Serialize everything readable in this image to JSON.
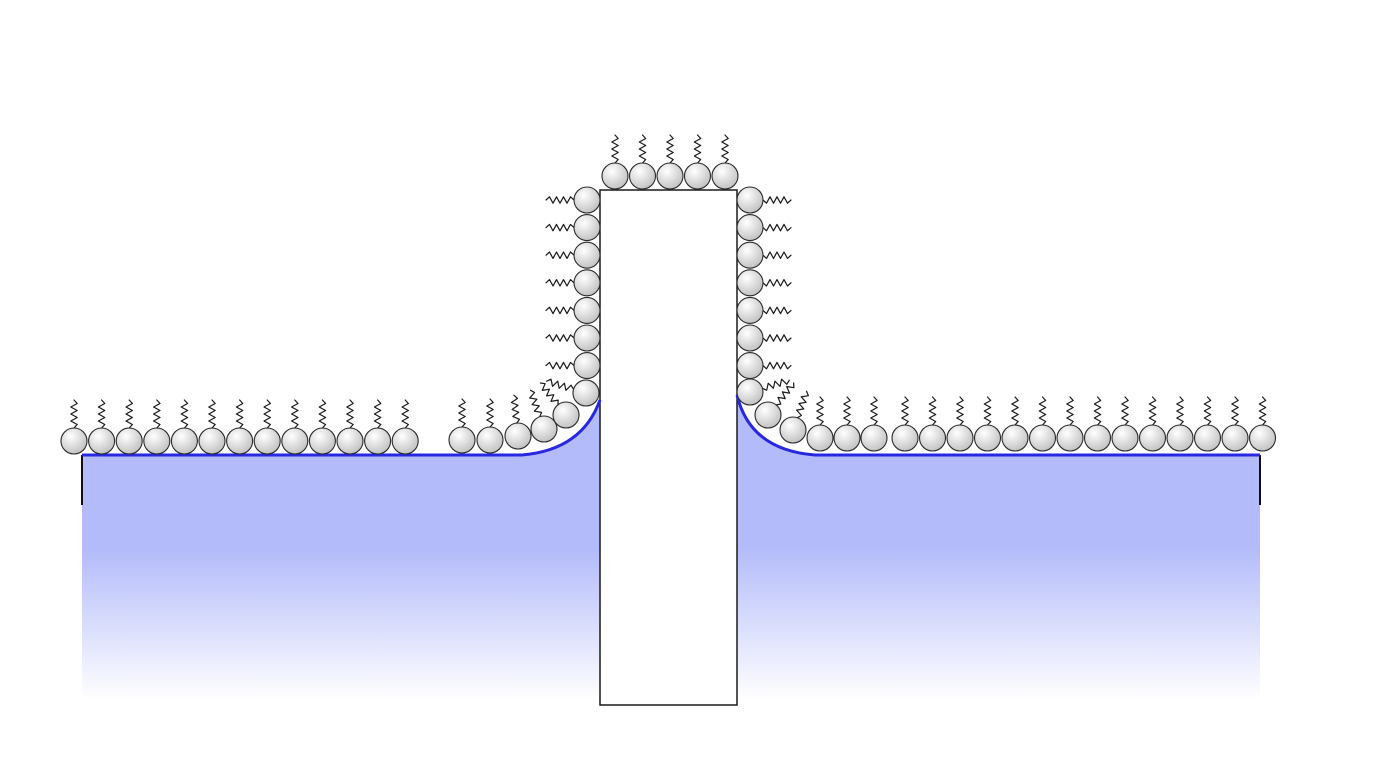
{
  "colors": {
    "background": "#ffffff",
    "liquid_fill": "#b3bbfa",
    "liquid_fade": "#ffffff",
    "meniscus_line": "#2828e0",
    "plate_outline": "#1a1a1a",
    "plate_fill": "#ffffff",
    "container_wall": "#111111",
    "molecule_head_light": "#ffffff",
    "molecule_head_dark": "#bdbdbd",
    "molecule_tail": "#1a1a1a"
  },
  "diagram": {
    "subject": "surfactant-monolayer-on-plate-and-liquid-surface",
    "elements": [
      "liquid-bath-left",
      "liquid-bath-right",
      "vertical-plate",
      "meniscus-left",
      "meniscus-right",
      "surface-monolayer",
      "plate-top-monolayer",
      "plate-side-monolayers"
    ]
  }
}
